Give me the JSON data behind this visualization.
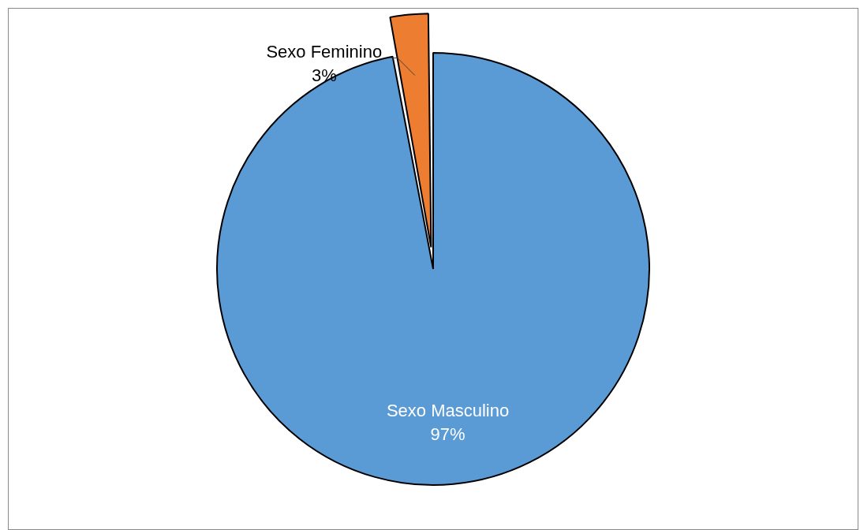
{
  "chart_data": {
    "type": "pie",
    "categories": [
      "Sexo Masculino",
      "Sexo Feminino"
    ],
    "values": [
      97,
      3
    ],
    "colors": [
      "#5b9bd5",
      "#ed7d31"
    ],
    "value_labels": [
      "97%",
      "3%"
    ],
    "legend": false
  }
}
